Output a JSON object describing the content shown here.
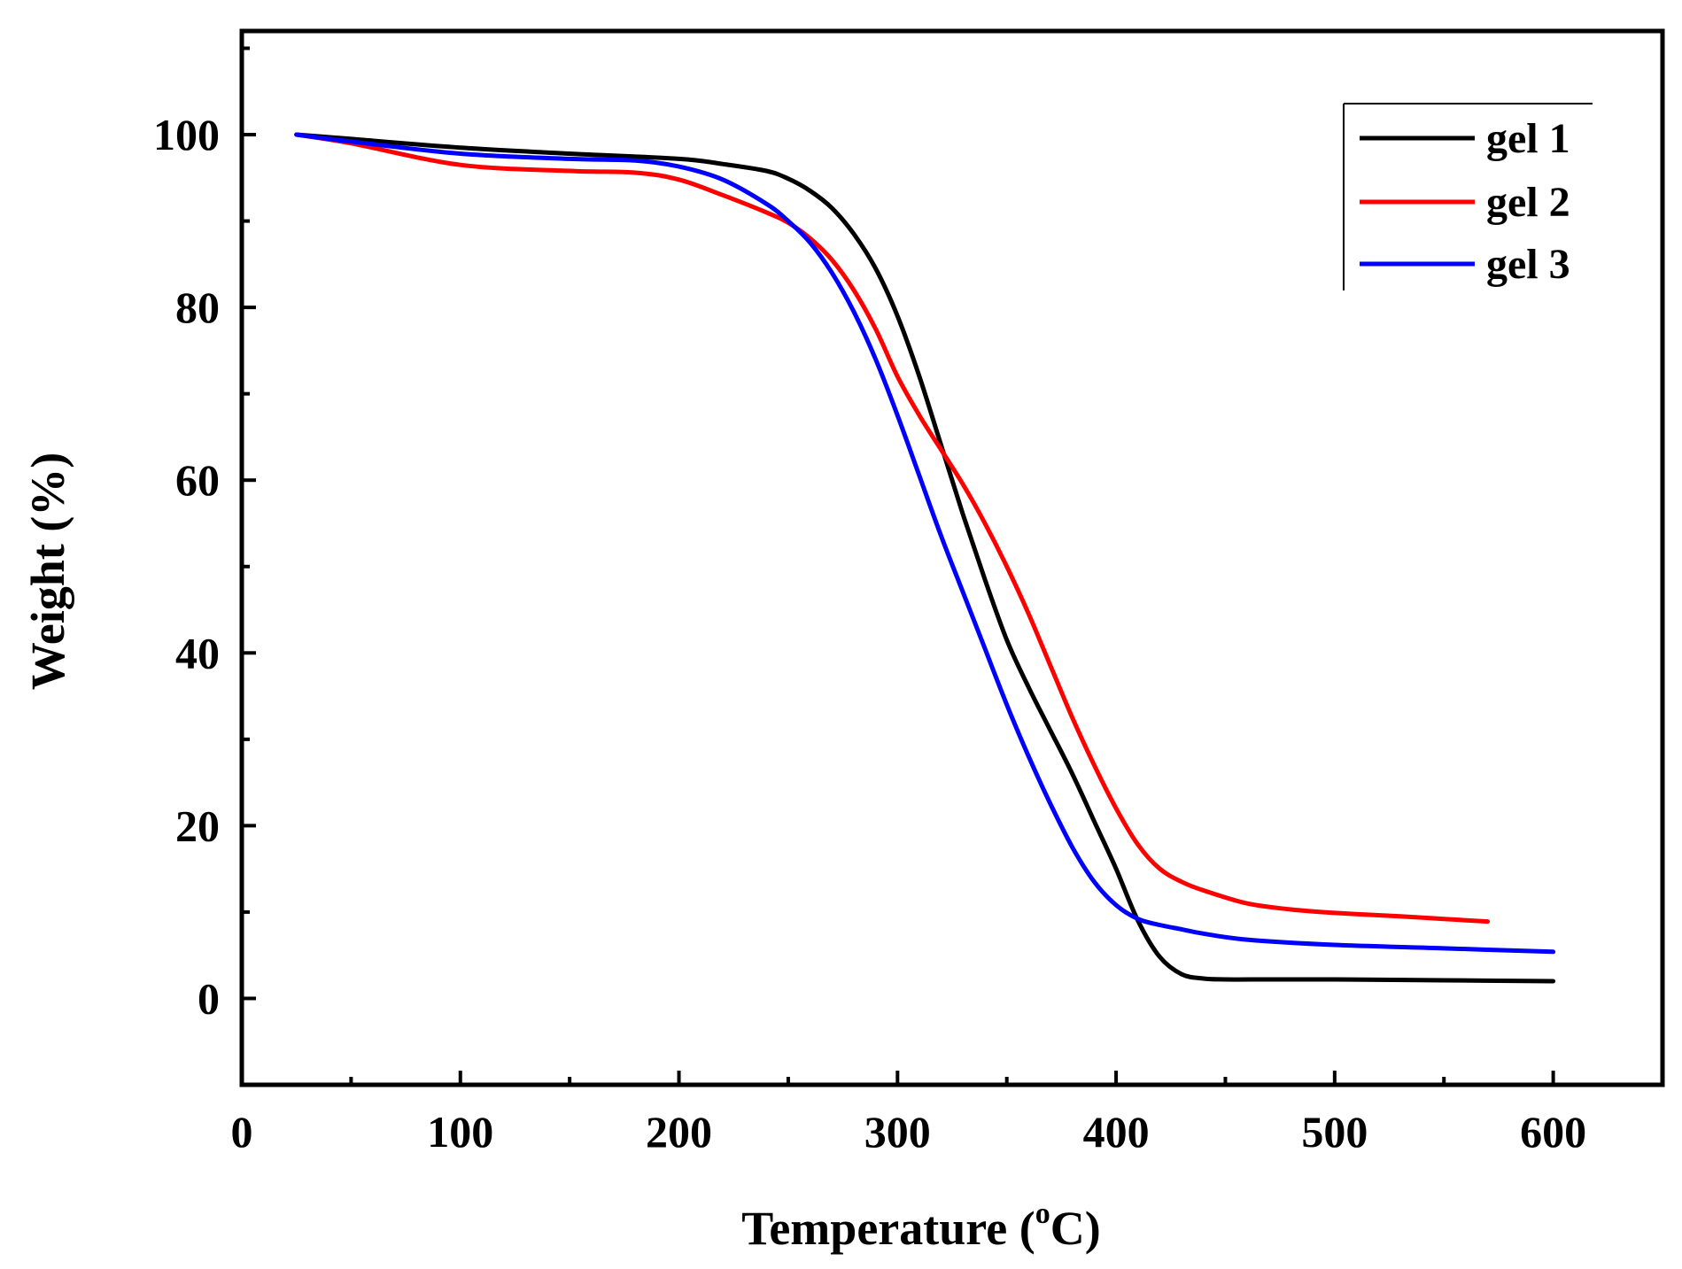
{
  "chart_data": {
    "type": "line",
    "title": "",
    "xlabel": "Temperature (°C)",
    "xlabel_main": "Temperature (",
    "xlabel_deg": "o",
    "xlabel_unit": "C)",
    "ylabel": "Weight (%)",
    "xlim": [
      0,
      650
    ],
    "ylim": [
      -10,
      112
    ],
    "xticks": [
      0,
      100,
      200,
      300,
      400,
      500,
      600
    ],
    "yticks": [
      0,
      20,
      40,
      60,
      80,
      100
    ],
    "xtick_labels": [
      "0",
      "100",
      "200",
      "300",
      "400",
      "500",
      "600"
    ],
    "ytick_labels": [
      "0",
      "20",
      "40",
      "60",
      "80",
      "100"
    ],
    "x_minor_step": 50,
    "y_minor_step": 10,
    "grid": false,
    "legend_position": "top-right",
    "series": [
      {
        "name": "gel 1",
        "color": "#000000",
        "x": [
          25,
          50,
          100,
          150,
          200,
          220,
          240,
          250,
          260,
          270,
          280,
          290,
          300,
          310,
          320,
          330,
          340,
          350,
          360,
          370,
          380,
          390,
          400,
          410,
          420,
          430,
          440,
          450,
          470,
          500,
          550,
          600
        ],
        "y": [
          100,
          99.5,
          98.5,
          97.8,
          97.2,
          96.6,
          95.8,
          94.9,
          93.5,
          91.5,
          88.5,
          84.5,
          79,
          72,
          64,
          56,
          48.5,
          41.5,
          36,
          31,
          26,
          20.5,
          15,
          9,
          4.8,
          2.8,
          2.3,
          2.2,
          2.2,
          2.2,
          2.1,
          2
        ]
      },
      {
        "name": "gel 2",
        "color": "#ff0000",
        "x": [
          25,
          50,
          100,
          150,
          180,
          200,
          220,
          240,
          250,
          260,
          270,
          280,
          290,
          300,
          310,
          320,
          330,
          340,
          350,
          360,
          370,
          380,
          390,
          400,
          410,
          420,
          430,
          440,
          460,
          480,
          500,
          530,
          550,
          570
        ],
        "y": [
          100,
          99,
          96.5,
          95.8,
          95.6,
          94.8,
          93,
          91,
          89.8,
          88,
          85.5,
          82,
          77.5,
          72,
          67.5,
          63.5,
          59.5,
          55,
          50,
          44.5,
          38.5,
          32.5,
          27,
          22,
          17.8,
          15,
          13.5,
          12.5,
          11,
          10.3,
          9.9,
          9.5,
          9.2,
          8.9
        ]
      },
      {
        "name": "gel 3",
        "color": "#0000ff",
        "x": [
          25,
          50,
          100,
          150,
          180,
          200,
          220,
          240,
          250,
          260,
          270,
          280,
          290,
          300,
          310,
          320,
          330,
          340,
          350,
          360,
          370,
          380,
          390,
          400,
          410,
          420,
          430,
          440,
          460,
          500,
          550,
          600
        ],
        "y": [
          100,
          99.2,
          97.8,
          97.2,
          97,
          96.3,
          94.8,
          92,
          90,
          87.5,
          84,
          79.5,
          74,
          67.5,
          60.5,
          53.5,
          47,
          40.5,
          34,
          28,
          22.5,
          17.5,
          13.5,
          10.8,
          9.2,
          8.5,
          8,
          7.5,
          6.8,
          6.2,
          5.8,
          5.4
        ]
      }
    ]
  }
}
